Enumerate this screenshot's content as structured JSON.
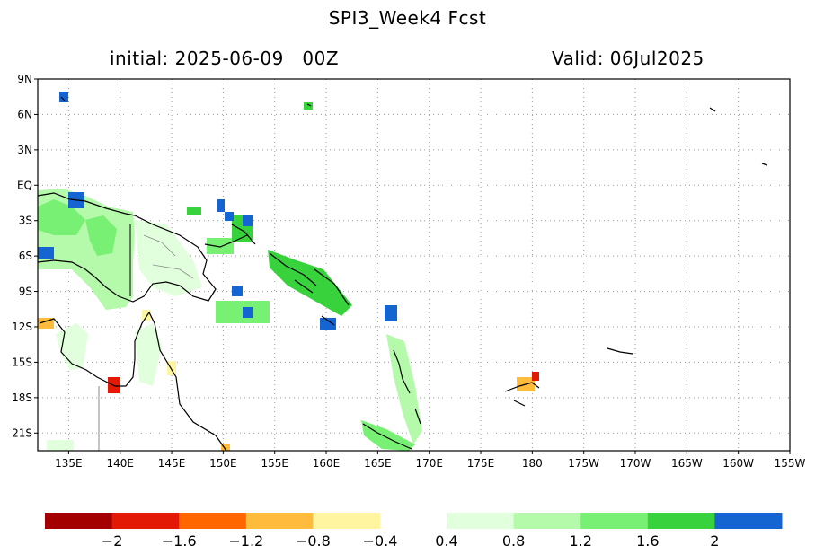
{
  "header": {
    "title": "SPI3_Week4   Fcst",
    "initial": "initial: 2025-06-09   00Z",
    "valid": "Valid: 06Jul2025"
  },
  "map": {
    "lon_range": [
      132,
      205
    ],
    "lat_range": [
      -22.5,
      9
    ],
    "lat_ticks": [
      {
        "v": 9,
        "label": "9N"
      },
      {
        "v": 6,
        "label": "6N"
      },
      {
        "v": 3,
        "label": "3N"
      },
      {
        "v": 0,
        "label": "EQ"
      },
      {
        "v": -3,
        "label": "3S"
      },
      {
        "v": -6,
        "label": "6S"
      },
      {
        "v": -9,
        "label": "9S"
      },
      {
        "v": -12,
        "label": "12S"
      },
      {
        "v": -15,
        "label": "15S"
      },
      {
        "v": -18,
        "label": "18S"
      },
      {
        "v": -21,
        "label": "21S"
      }
    ],
    "lon_ticks": [
      {
        "v": 135,
        "label": "135E"
      },
      {
        "v": 140,
        "label": "140E"
      },
      {
        "v": 145,
        "label": "145E"
      },
      {
        "v": 150,
        "label": "150E"
      },
      {
        "v": 155,
        "label": "155E"
      },
      {
        "v": 160,
        "label": "160E"
      },
      {
        "v": 165,
        "label": "165E"
      },
      {
        "v": 170,
        "label": "170E"
      },
      {
        "v": 175,
        "label": "175E"
      },
      {
        "v": 180,
        "label": "180"
      },
      {
        "v": 185,
        "label": "175W"
      },
      {
        "v": 190,
        "label": "170W"
      },
      {
        "v": 195,
        "label": "165W"
      },
      {
        "v": 200,
        "label": "160W"
      },
      {
        "v": 205,
        "label": "155W"
      }
    ],
    "grid": "dotted"
  },
  "colorbar": {
    "negative_colors": [
      "#a50000",
      "#e21a05",
      "#ff6600",
      "#ffbb3c",
      "#fff5a0"
    ],
    "positive_colors": [
      "#e1ffdc",
      "#b4faaa",
      "#78f073",
      "#37d23c",
      "#1464d2"
    ],
    "labels": [
      {
        "label": "−2",
        "side": "neg",
        "idx": 1
      },
      {
        "label": "−1.6",
        "side": "neg",
        "idx": 2
      },
      {
        "label": "−1.2",
        "side": "neg",
        "idx": 3
      },
      {
        "label": "−0.8",
        "side": "neg",
        "idx": 4
      },
      {
        "label": "−0.4",
        "side": "neg",
        "idx": 5
      },
      {
        "label": "0.4",
        "side": "pos",
        "idx": 0
      },
      {
        "label": "0.8",
        "side": "pos",
        "idx": 1
      },
      {
        "label": "1.2",
        "side": "pos",
        "idx": 2
      },
      {
        "label": "1.6",
        "side": "pos",
        "idx": 3
      },
      {
        "label": "2",
        "side": "pos",
        "idx": 4
      }
    ]
  }
}
